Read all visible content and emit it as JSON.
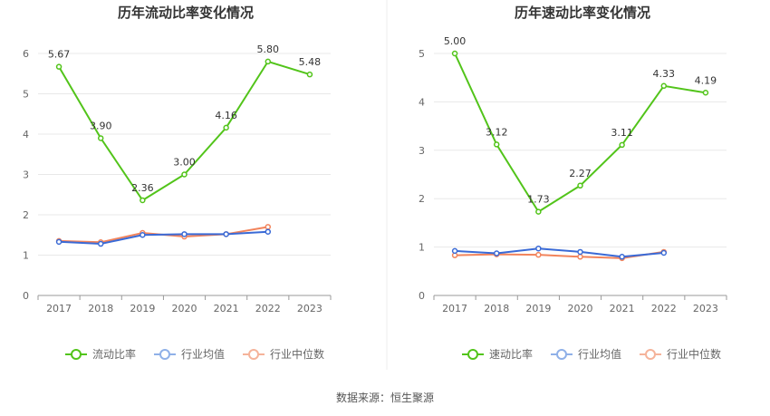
{
  "source_label": "数据来源：恒生聚源",
  "colors": {
    "main": "#52c41a",
    "industry_avg": "#3a6ad6",
    "industry_median": "#f2845c",
    "legend_avg": "#8fb0e8",
    "legend_median": "#f5b39a",
    "grid": "#e8e8e8",
    "axis": "#999999"
  },
  "chart_data": [
    {
      "type": "line",
      "title": "历年流动比率变化情况",
      "categories": [
        "2017",
        "2018",
        "2019",
        "2020",
        "2021",
        "2022",
        "2023"
      ],
      "ylim": [
        0,
        6
      ],
      "yticks": [
        0,
        1,
        2,
        3,
        4,
        5,
        6
      ],
      "series": [
        {
          "name": "流动比率",
          "values": [
            5.67,
            3.9,
            2.36,
            3.0,
            4.16,
            5.8,
            5.48
          ],
          "labels": [
            "5.67",
            "3.90",
            "2.36",
            "3.00",
            "4.16",
            "5.80",
            "5.48"
          ]
        },
        {
          "name": "行业均值",
          "values": [
            1.33,
            1.28,
            1.5,
            1.52,
            1.52,
            1.58,
            null
          ]
        },
        {
          "name": "行业中位数",
          "values": [
            1.35,
            1.32,
            1.55,
            1.46,
            1.52,
            1.7,
            null
          ]
        }
      ]
    },
    {
      "type": "line",
      "title": "历年速动比率变化情况",
      "categories": [
        "2017",
        "2018",
        "2019",
        "2020",
        "2021",
        "2022",
        "2023"
      ],
      "ylim": [
        0,
        5
      ],
      "yticks": [
        0,
        1,
        2,
        3,
        4,
        5
      ],
      "series": [
        {
          "name": "速动比率",
          "values": [
            5.0,
            3.12,
            1.73,
            2.27,
            3.11,
            4.33,
            4.19
          ],
          "labels": [
            "5.00",
            "3.12",
            "1.73",
            "2.27",
            "3.11",
            "4.33",
            "4.19"
          ]
        },
        {
          "name": "行业均值",
          "values": [
            0.92,
            0.87,
            0.97,
            0.9,
            0.8,
            0.88,
            null
          ]
        },
        {
          "name": "行业中位数",
          "values": [
            0.83,
            0.85,
            0.84,
            0.8,
            0.77,
            0.9,
            null
          ]
        }
      ]
    }
  ]
}
